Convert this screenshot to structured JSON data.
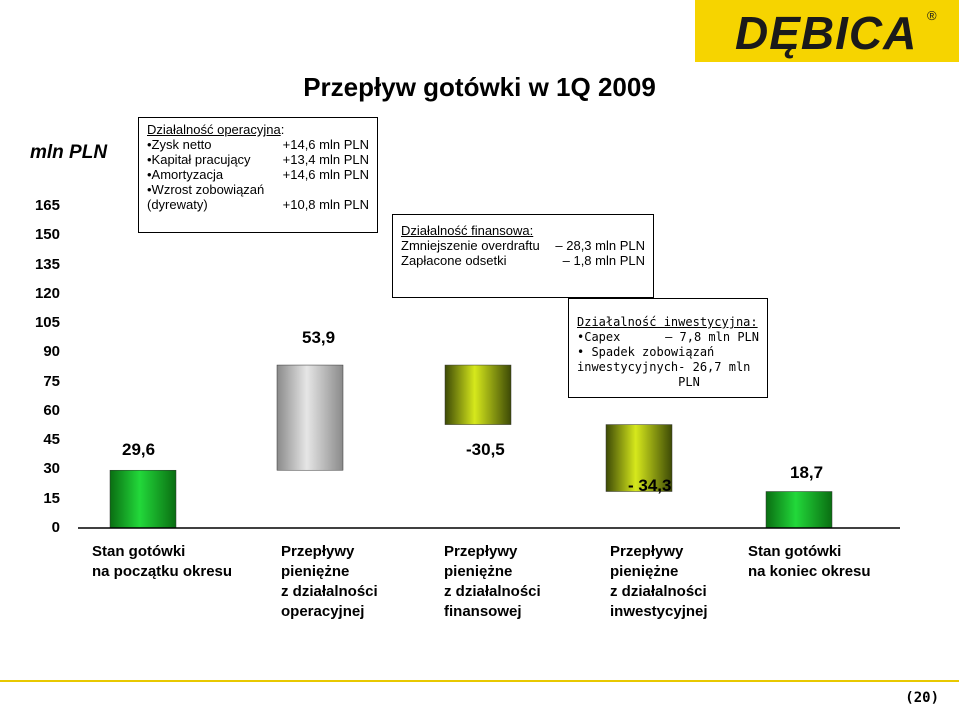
{
  "header": {
    "logo_text": "DĘBICA",
    "logo_reg": "®",
    "title": "Przepływ gotówki w 1Q 2009",
    "page_number": "(20)",
    "brand_color": "#f6d400"
  },
  "chart_data": {
    "type": "waterfall",
    "unit_label": "mln PLN",
    "ylim": [
      0,
      165
    ],
    "yticks": [
      "0",
      "15",
      "30",
      "45",
      "60",
      "75",
      "90",
      "105",
      "120",
      "135",
      "150",
      "165"
    ],
    "categories": [
      [
        "Stan gotówki",
        "na początku okresu"
      ],
      [
        "Przepływy",
        "pieniężne",
        "z działalności",
        "operacyjnej"
      ],
      [
        "Przepływy",
        "pieniężne",
        "z działalności",
        "finansowej"
      ],
      [
        "Przepływy",
        "pieniężne",
        "z działalności",
        "inwestycyjnej"
      ],
      [
        "Stan gotówki",
        "na koniec okresu"
      ]
    ],
    "values": [
      29.6,
      53.9,
      -30.5,
      -34.3,
      18.7
    ],
    "value_labels": [
      "29,6",
      "53,9",
      "-30,5",
      "- 34,3",
      "18,7"
    ],
    "bar_colors": [
      "green",
      "gray",
      "olive",
      "olive",
      "green"
    ]
  },
  "notes": {
    "operating": {
      "heading": "Działalność operacyjna",
      "suffix": ":",
      "rows": [
        {
          "label": "•Zysk netto",
          "value": "+14,6 mln PLN"
        },
        {
          "label": "•Kapitał pracujący",
          "value": "+13,4 mln PLN"
        },
        {
          "label": "•Amortyzacja",
          "value": "+14,6 mln PLN"
        },
        {
          "label": "•Wzrost zobowiązań",
          "value": ""
        },
        {
          "label": "(dyrewaty)",
          "value": "+10,8 mln PLN"
        }
      ]
    },
    "financing": {
      "heading": "Działalność finansowa:",
      "rows": [
        {
          "label": "Zmniejszenie overdraftu",
          "value": "– 28,3 mln PLN"
        },
        {
          "label": "Zapłacone odsetki",
          "value": "– 1,8 mln PLN"
        }
      ]
    },
    "investing": {
      "heading": "Działalność inwestycyjna:",
      "rows": [
        {
          "label": "•Capex",
          "value": "– 7,8 mln PLN"
        },
        {
          "label": "• Spadek zobowiązań",
          "value": ""
        },
        {
          "label": "inwestycyjnych",
          "value": "- 26,7 mln PLN"
        }
      ]
    }
  }
}
